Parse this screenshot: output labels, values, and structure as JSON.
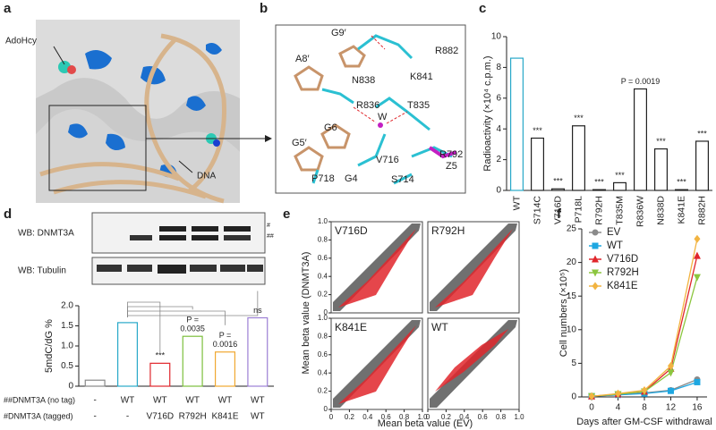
{
  "panel_labels": [
    "a",
    "b",
    "c",
    "d",
    "e",
    "f"
  ],
  "panel_a": {
    "labels": [
      "AdoHcy",
      "DNA"
    ]
  },
  "panel_b": {
    "labels": [
      {
        "text": "G9′",
        "color": "#b8865a"
      },
      {
        "text": "R882",
        "color": "#29a9c9"
      },
      {
        "text": "A8′",
        "color": "#b8865a"
      },
      {
        "text": "K841",
        "color": "#29a9c9"
      },
      {
        "text": "N838",
        "color": "#29a9c9"
      },
      {
        "text": "R836",
        "color": "#29a9c9"
      },
      {
        "text": "T835",
        "color": "#29a9c9"
      },
      {
        "text": "W",
        "color": "#333333"
      },
      {
        "text": "G6",
        "color": "#b8865a"
      },
      {
        "text": "G5′",
        "color": "#b8865a"
      },
      {
        "text": "R792",
        "color": "#29a9c9"
      },
      {
        "text": "V716",
        "color": "#29a9c9"
      },
      {
        "text": "P718",
        "color": "#29a9c9"
      },
      {
        "text": "G4",
        "color": "#b8865a"
      },
      {
        "text": "S714",
        "color": "#29a9c9"
      },
      {
        "text": "Z5",
        "color": "#c21fc2"
      }
    ]
  },
  "blot": {
    "labels": [
      "WB: DNMT3A",
      "WB: Tubulin"
    ],
    "band_marks": [
      "#",
      "##"
    ]
  },
  "chart_data": [
    {
      "type": "bar",
      "ylabel": "Radioactivity (×10⁴ c.p.m.)",
      "categories": [
        "WT",
        "S714C",
        "V716D",
        "P718L",
        "R792H",
        "T835M",
        "R836W",
        "N838D",
        "K841E",
        "R882H"
      ],
      "category_colors": [
        "#29a9c9",
        "#222222",
        "#e0262b",
        "#222222",
        "#e0262b",
        "#222222",
        "#222222",
        "#222222",
        "#e0262b",
        "#222222"
      ],
      "values": [
        8.6,
        3.4,
        0.1,
        4.2,
        0.05,
        0.5,
        6.6,
        2.7,
        0.05,
        3.2
      ],
      "colors": [
        "#29a9c9",
        "#222222",
        "#222222",
        "#222222",
        "#222222",
        "#222222",
        "#222222",
        "#222222",
        "#222222",
        "#222222"
      ],
      "ylim": [
        0,
        10
      ],
      "yticks": [
        0,
        2,
        4,
        6,
        8,
        10
      ],
      "annotations": [
        {
          "category": "S714C",
          "lines": [
            "***"
          ]
        },
        {
          "category": "V716D",
          "lines": [
            "***"
          ]
        },
        {
          "category": "P718L",
          "lines": [
            "***"
          ]
        },
        {
          "category": "R792H",
          "lines": [
            "***"
          ]
        },
        {
          "category": "T835M",
          "lines": [
            "***"
          ]
        },
        {
          "category": "R836W",
          "lines": [
            "P = 0.0019"
          ]
        },
        {
          "category": "N838D",
          "lines": [
            "***"
          ]
        },
        {
          "category": "K841E",
          "lines": [
            "***"
          ]
        },
        {
          "category": "R882H",
          "lines": [
            "***"
          ]
        }
      ]
    },
    {
      "type": "bar",
      "ylabel": "5mdC/dG %",
      "values": [
        0.15,
        1.58,
        0.57,
        1.24,
        0.85,
        1.7
      ],
      "colors": [
        "#888888",
        "#29a9c9",
        "#e0262b",
        "#7cbf3c",
        "#f0a830",
        "#9b7fd4"
      ],
      "ylim": [
        0,
        2
      ],
      "yticks": [
        0,
        0.5,
        {
          "value": 1,
          "label": "1.0"
        },
        1.5,
        {
          "value": 2,
          "label": "2.0"
        }
      ],
      "annotations": [
        {
          "bar": 2,
          "lines": [
            "***"
          ]
        },
        {
          "bar": 3,
          "lines": [
            "P =",
            "0.0035"
          ]
        },
        {
          "bar": 4,
          "lines": [
            "P =",
            "0.0016"
          ]
        },
        {
          "bar": 5,
          "lines": [
            "ns"
          ]
        }
      ],
      "table": {
        "rows": [
          {
            "label": "##DNMT3A (no tag)",
            "cells": [
              "-",
              "WT",
              "WT",
              "WT",
              "WT",
              "WT"
            ]
          },
          {
            "label": "#DNMT3A (tagged)",
            "cells": [
              "-",
              "-",
              "V716D",
              "R792H",
              "K841E",
              "WT"
            ]
          }
        ]
      }
    },
    {
      "type": "scatter",
      "facets": [
        "V716D",
        "R792H",
        "K841E",
        "WT"
      ],
      "facet_colors": [
        "#222222",
        "#222222",
        "#222222",
        "#29a9c9"
      ],
      "xlabel": "Mean beta value (EV)",
      "ylabel": "Mean beta value (DNMT3A)",
      "xlim": [
        0,
        1
      ],
      "ylim": [
        0,
        1
      ],
      "xticks": [
        0,
        0.2,
        0.4,
        0.6,
        0.8,
        {
          "value": 1,
          "label": "1.0"
        }
      ],
      "yticks": [
        0,
        0.2,
        0.4,
        0.6,
        0.8,
        {
          "value": 1,
          "label": "1.0"
        }
      ]
    },
    {
      "type": "line",
      "xlabel": "Days after GM-CSF withdrawal",
      "ylabel": "Cell numbers (×10⁵)",
      "x": [
        0,
        4,
        8,
        12,
        16
      ],
      "xlim": [
        -1.5,
        17.5
      ],
      "xticks": [
        0,
        4,
        8,
        12,
        16
      ],
      "ylim": [
        0,
        25
      ],
      "yticks": [
        0,
        5,
        10,
        15,
        20,
        25
      ],
      "legend": "top-left",
      "series": [
        {
          "name": "EV",
          "color": "#8a8a8a",
          "marker": "circle",
          "values": [
            0.1,
            0.3,
            0.6,
            1.0,
            2.6
          ]
        },
        {
          "name": "WT",
          "color": "#1ea7e1",
          "marker": "square",
          "values": [
            0.1,
            0.3,
            0.5,
            0.9,
            2.2
          ]
        },
        {
          "name": "V716D",
          "color": "#e0262b",
          "marker": "triangle",
          "values": [
            0.1,
            0.4,
            0.8,
            4.2,
            21
          ]
        },
        {
          "name": "R792H",
          "color": "#8cc63f",
          "marker": "triangle-down",
          "values": [
            0.1,
            0.4,
            0.8,
            3.6,
            17.8
          ]
        },
        {
          "name": "K841E",
          "color": "#f2b441",
          "marker": "diamond",
          "values": [
            0.1,
            0.5,
            1.0,
            4.6,
            23.5
          ]
        }
      ]
    }
  ]
}
